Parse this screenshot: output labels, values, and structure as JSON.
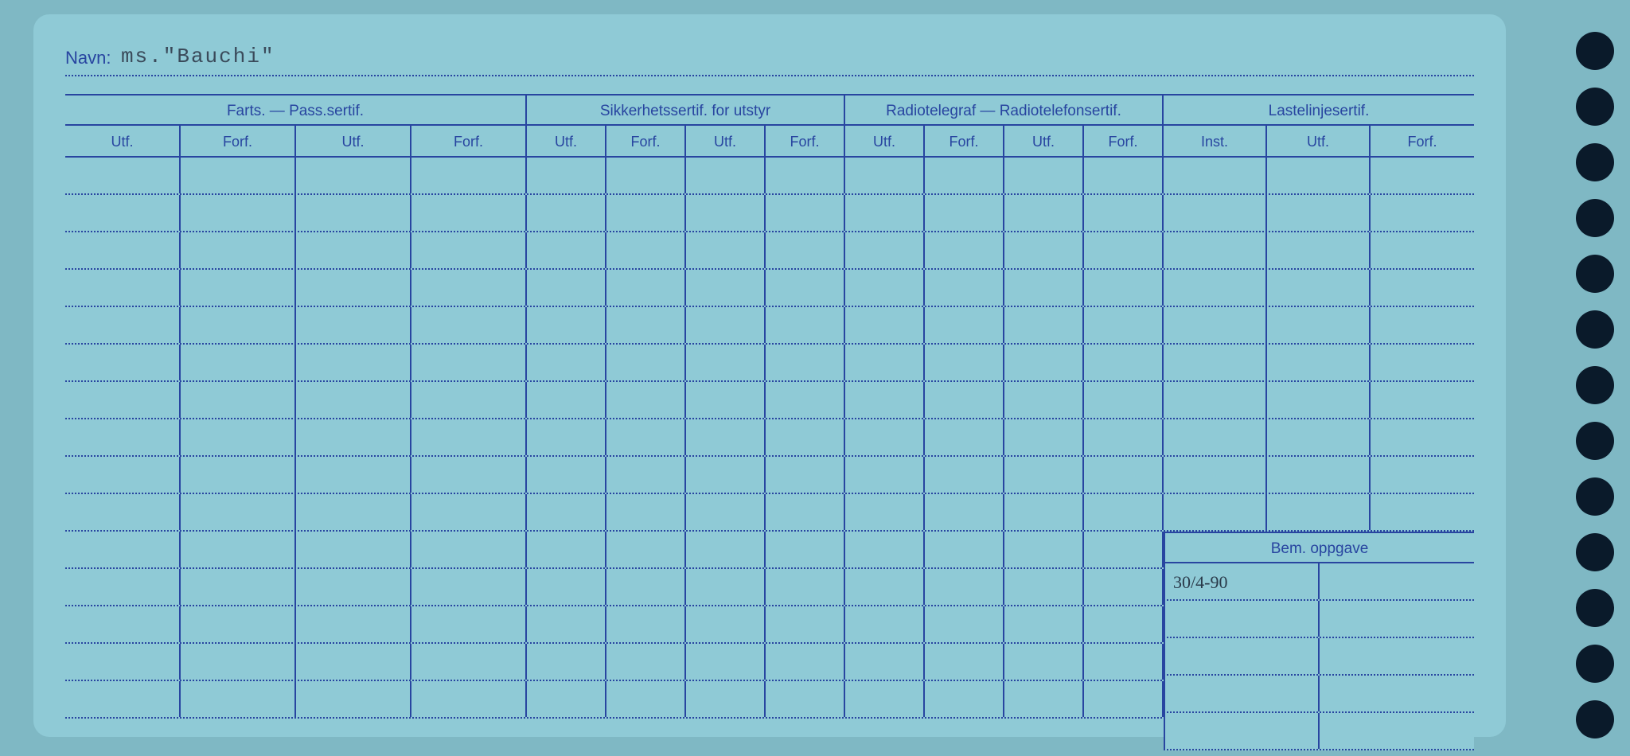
{
  "card": {
    "background_color": "#8fcad6",
    "border_color": "#2845a0"
  },
  "navn": {
    "label": "Navn:",
    "value": "ms.\"Bauchi\""
  },
  "groups": [
    {
      "label": "Farts. — Pass.sertif.",
      "columns": [
        "Utf.",
        "Forf.",
        "Utf.",
        "Forf."
      ]
    },
    {
      "label": "Sikkerhetssertif. for utstyr",
      "columns": [
        "Utf.",
        "Forf.",
        "Utf.",
        "Forf."
      ]
    },
    {
      "label": "Radiotelegraf — Radiotelefonsertif.",
      "columns": [
        "Utf.",
        "Forf.",
        "Utf.",
        "Forf."
      ]
    },
    {
      "label": "Lastelinjesertif.",
      "columns": [
        "Inst.",
        "Utf.",
        "Forf."
      ]
    }
  ],
  "bem": {
    "label": "Bem. oppgave",
    "entry": "30/4-90"
  },
  "row_count": 15,
  "punch_hole_count": 13,
  "colors": {
    "page_bg": "#7fb8c4",
    "card_bg": "#8fcad6",
    "line": "#2845a0",
    "text": "#2845a0",
    "handwriting": "#2a3a4a",
    "hole": "#0a1a2a"
  }
}
